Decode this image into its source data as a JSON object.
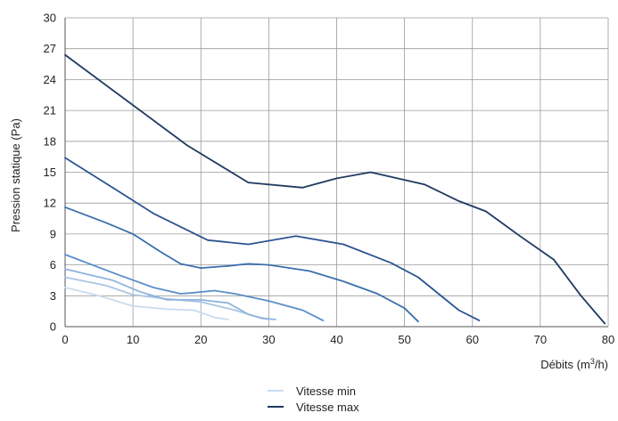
{
  "chart_data": {
    "type": "line",
    "xlabel": "Débits (m",
    "xlabel_sup": "3",
    "xlabel_tail": "/h)",
    "ylabel": "Pression statique (Pa)",
    "xlim": [
      0,
      80
    ],
    "ylim": [
      0,
      30
    ],
    "x_ticks": [
      "0",
      "10",
      "20",
      "30",
      "40",
      "50",
      "60",
      "70",
      "80"
    ],
    "y_ticks": [
      "0",
      "3",
      "6",
      "9",
      "12",
      "15",
      "18",
      "21",
      "24",
      "27",
      "30"
    ],
    "grid": true,
    "legend_position": "bottom",
    "series": [
      {
        "color": "#c9dcee",
        "points": [
          [
            0,
            3.8
          ],
          [
            5,
            3.0
          ],
          [
            10,
            2.0
          ],
          [
            15,
            1.7
          ],
          [
            19,
            1.6
          ],
          [
            22,
            0.9
          ],
          [
            24,
            0.7
          ]
        ]
      },
      {
        "color": "#a9c6e4",
        "points": [
          [
            0,
            4.8
          ],
          [
            6,
            4.0
          ],
          [
            10,
            3.1
          ],
          [
            15,
            2.7
          ],
          [
            20,
            2.4
          ],
          [
            25,
            1.6
          ],
          [
            28,
            1.0
          ],
          [
            30,
            0.7
          ]
        ]
      },
      {
        "color": "#8eb3dc",
        "points": [
          [
            0,
            5.6
          ],
          [
            7,
            4.5
          ],
          [
            11,
            3.4
          ],
          [
            15,
            2.6
          ],
          [
            20,
            2.6
          ],
          [
            24,
            2.3
          ],
          [
            27,
            1.2
          ],
          [
            29,
            0.8
          ],
          [
            31,
            0.7
          ]
        ]
      },
      {
        "color": "#5b8ec9",
        "points": [
          [
            0,
            7.0
          ],
          [
            8,
            5.0
          ],
          [
            13,
            3.8
          ],
          [
            17,
            3.2
          ],
          [
            19,
            3.3
          ],
          [
            22,
            3.5
          ],
          [
            25,
            3.2
          ],
          [
            30,
            2.5
          ],
          [
            35,
            1.6
          ],
          [
            38,
            0.6
          ]
        ]
      },
      {
        "color": "#3b6fae",
        "points": [
          [
            0,
            11.6
          ],
          [
            6,
            10.1
          ],
          [
            10,
            9.0
          ],
          [
            14,
            7.3
          ],
          [
            17,
            6.1
          ],
          [
            20,
            5.7
          ],
          [
            24,
            5.9
          ],
          [
            27,
            6.1
          ],
          [
            30,
            6.0
          ],
          [
            36,
            5.4
          ],
          [
            41,
            4.4
          ],
          [
            46,
            3.2
          ],
          [
            50,
            1.8
          ],
          [
            52,
            0.5
          ]
        ]
      },
      {
        "color": "#2b5590",
        "points": [
          [
            0,
            16.4
          ],
          [
            7,
            13.5
          ],
          [
            13,
            11.0
          ],
          [
            17,
            9.7
          ],
          [
            21,
            8.4
          ],
          [
            27,
            8.0
          ],
          [
            34,
            8.8
          ],
          [
            41,
            8.0
          ],
          [
            48,
            6.2
          ],
          [
            52,
            4.8
          ],
          [
            55,
            3.2
          ],
          [
            58,
            1.6
          ],
          [
            61,
            0.6
          ]
        ]
      },
      {
        "color": "#1f3a60",
        "points": [
          [
            0,
            26.4
          ],
          [
            9,
            22.0
          ],
          [
            18,
            17.6
          ],
          [
            27,
            14.0
          ],
          [
            35,
            13.5
          ],
          [
            40,
            14.4
          ],
          [
            45,
            15.0
          ],
          [
            53,
            13.8
          ],
          [
            58,
            12.2
          ],
          [
            62,
            11.2
          ],
          [
            67,
            8.8
          ],
          [
            72,
            6.5
          ],
          [
            76,
            3.0
          ],
          [
            79.5,
            0.3
          ]
        ]
      }
    ],
    "legend": [
      {
        "label": "Vitesse min",
        "color": "#c9dcee"
      },
      {
        "label": "Vitesse max",
        "color": "#1f3a60"
      }
    ]
  }
}
